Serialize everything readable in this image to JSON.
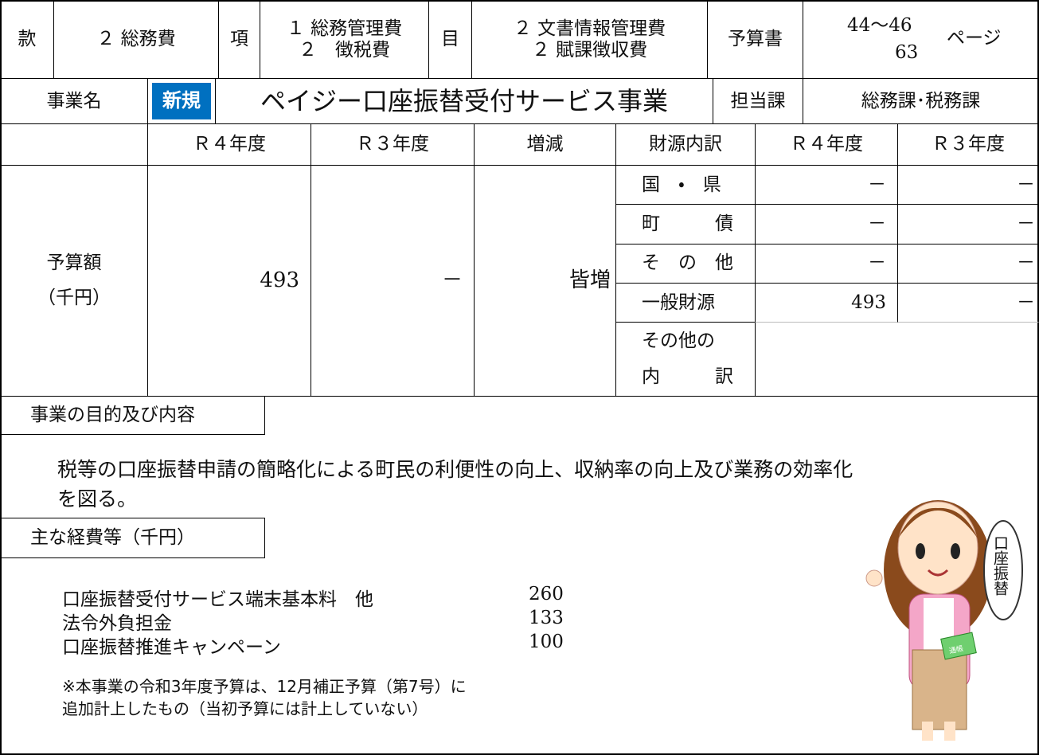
{
  "header": {
    "kan_label": "款",
    "kan": "２ 総務費",
    "kou_label": "項",
    "kou": [
      "１ 総務管理費",
      "２　徴税費"
    ],
    "moku_label": "目",
    "moku": [
      "２ 文書情報管理費",
      "２ 賦課徴収費"
    ],
    "budget_book_label": "予算書",
    "pages": [
      "44～46",
      "63"
    ],
    "page_unit": "ページ"
  },
  "project": {
    "label": "事業名",
    "badge": "新規",
    "name": "ペイジー口座振替受付サービス事業",
    "dept_label": "担当課",
    "dept": "総務課･税務課"
  },
  "budget": {
    "label": [
      "予算額",
      "（千円）"
    ],
    "columns": [
      "Ｒ４年度",
      "Ｒ３年度",
      "増減"
    ],
    "values": [
      493,
      "－",
      "皆増"
    ],
    "sources_header": "財源内訳",
    "source_columns": [
      "Ｒ４年度",
      "Ｒ３年度"
    ],
    "sources": [
      {
        "name": "国　・　県",
        "r4": "－",
        "r3": "－"
      },
      {
        "name": "町　　　債",
        "r4": "－",
        "r3": "－"
      },
      {
        "name": "そ　の　他",
        "r4": "－",
        "r3": "－"
      },
      {
        "name": "一般財源",
        "r4": 493,
        "r3": "－"
      }
    ],
    "other_breakdown": [
      "その他の",
      "内　　　訳"
    ]
  },
  "purpose": {
    "heading": "事業の目的及び内容",
    "lines": [
      "税等の口座振替申請の簡略化による町民の利便性の向上、収納率の向上及び業務の効率化",
      "を図る。"
    ]
  },
  "expenses": {
    "heading": "主な経費等（千円）",
    "items": [
      {
        "name": "口座振替受付サービス端末基本料　他",
        "amount": 260
      },
      {
        "name": "法令外負担金",
        "amount": 133
      },
      {
        "name": "口座振替推進キャンペーン",
        "amount": 100
      }
    ],
    "note": [
      "※本事業の令和3年度予算は、12月補正予算（第7号）に",
      "追加計上したもの（当初予算には計上していない）"
    ]
  },
  "illustration": {
    "bubble": "口座振替",
    "passbook": "通帳"
  }
}
